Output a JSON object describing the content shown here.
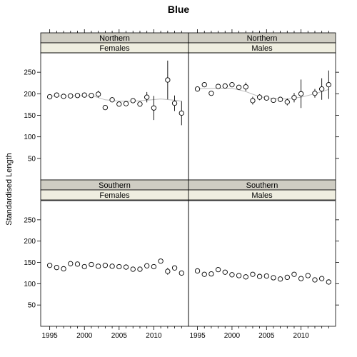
{
  "chart_data": {
    "type": "scatter",
    "title": "Blue",
    "ylabel": "Standardised Length",
    "xlabel": "",
    "xlim": [
      1993.7,
      2015.0
    ],
    "ylim": [
      0,
      295
    ],
    "x_ticks": [
      1995,
      2000,
      2005,
      2010
    ],
    "y_ticks": [
      50,
      100,
      150,
      200,
      250
    ],
    "colors": {
      "strip_region": "#cfcdc3",
      "strip_sex": "#efeee0",
      "trend": "#bbbbbb",
      "points": "#000000"
    },
    "panels": [
      {
        "region": "Northern",
        "sex": "Females",
        "x": [
          1995,
          1996,
          1997,
          1998,
          1999,
          2000,
          2001,
          2002,
          2003,
          2004,
          2005,
          2006,
          2007,
          2008,
          2009,
          2010,
          2012,
          2013,
          2014
        ],
        "y": [
          193,
          197,
          194,
          195,
          196,
          197,
          196,
          199,
          168,
          186,
          176,
          177,
          184,
          176,
          192,
          167,
          232,
          178,
          155
        ],
        "err": [
          5,
          5,
          4,
          4,
          4,
          4,
          5,
          8,
          4,
          5,
          4,
          4,
          5,
          5,
          12,
          28,
          45,
          18,
          28
        ],
        "trend": [
          [
            1995,
            195
          ],
          [
            1998,
            195
          ],
          [
            2001,
            196
          ],
          [
            2003,
            186
          ],
          [
            2005,
            183
          ],
          [
            2007,
            183
          ],
          [
            2009,
            185
          ],
          [
            2011,
            188
          ],
          [
            2013,
            185
          ],
          [
            2014,
            183
          ]
        ]
      },
      {
        "region": "Northern",
        "sex": "Males",
        "x": [
          1995,
          1996,
          1997,
          1998,
          1999,
          2000,
          2001,
          2002,
          2003,
          2004,
          2005,
          2006,
          2007,
          2008,
          2009,
          2010,
          2012,
          2013,
          2014
        ],
        "y": [
          211,
          221,
          201,
          217,
          218,
          221,
          215,
          216,
          184,
          192,
          190,
          185,
          187,
          181,
          191,
          200,
          201,
          211,
          221
        ],
        "err": [
          5,
          5,
          4,
          4,
          4,
          4,
          5,
          10,
          9,
          7,
          5,
          5,
          6,
          8,
          11,
          33,
          10,
          25,
          33
        ],
        "trend": [
          [
            1995,
            212
          ],
          [
            1998,
            213
          ],
          [
            2000,
            213
          ],
          [
            2002,
            205
          ],
          [
            2004,
            193
          ],
          [
            2006,
            189
          ],
          [
            2008,
            188
          ],
          [
            2010,
            192
          ],
          [
            2012,
            200
          ],
          [
            2014,
            210
          ]
        ]
      },
      {
        "region": "Southern",
        "sex": "Females",
        "x": [
          1995,
          1996,
          1997,
          1998,
          1999,
          2000,
          2001,
          2002,
          2003,
          2004,
          2005,
          2006,
          2007,
          2008,
          2009,
          2010,
          2011,
          2012,
          2013,
          2014
        ],
        "y": [
          143,
          138,
          135,
          147,
          146,
          140,
          145,
          141,
          143,
          141,
          140,
          139,
          134,
          134,
          142,
          140,
          153,
          129,
          137,
          125
        ],
        "err": [
          3,
          3,
          3,
          3,
          3,
          3,
          3,
          3,
          3,
          3,
          3,
          3,
          3,
          3,
          3,
          4,
          5,
          8,
          5,
          5
        ],
        "trend": []
      },
      {
        "region": "Southern",
        "sex": "Males",
        "x": [
          1995,
          1996,
          1997,
          1998,
          1999,
          2000,
          2001,
          2002,
          2003,
          2004,
          2005,
          2006,
          2007,
          2008,
          2009,
          2010,
          2011,
          2012,
          2013,
          2014
        ],
        "y": [
          130,
          122,
          123,
          133,
          127,
          121,
          119,
          116,
          122,
          117,
          118,
          114,
          111,
          115,
          122,
          112,
          119,
          109,
          112,
          104
        ],
        "err": [
          3,
          3,
          3,
          3,
          3,
          3,
          3,
          3,
          3,
          3,
          3,
          3,
          3,
          3,
          3,
          4,
          4,
          5,
          4,
          4
        ],
        "trend": []
      }
    ]
  }
}
